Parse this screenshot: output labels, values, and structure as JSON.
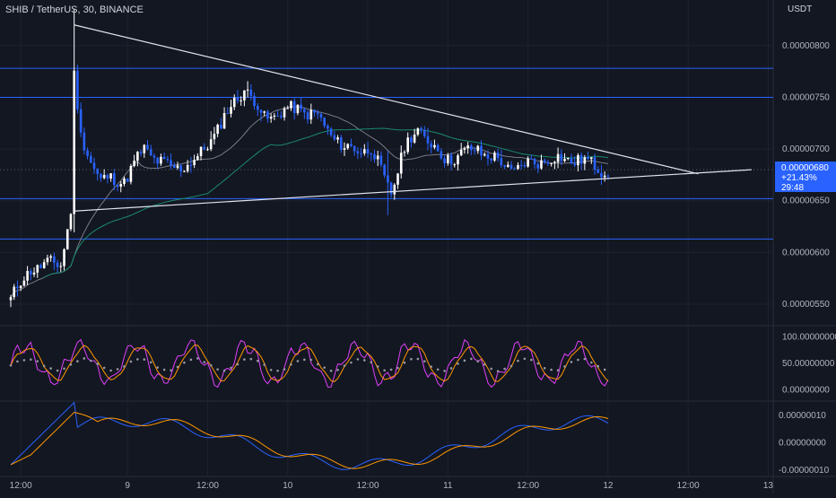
{
  "header": {
    "title": "SHIB / TetherUS, 30, BINANCE",
    "currency": "USDT"
  },
  "colors": {
    "background": "#131722",
    "grid": "#1e2230",
    "axis_text": "#b2b5be",
    "up_candle": "#ffffff",
    "down_candle": "#2962ff",
    "hline": "#2962ff",
    "trendline": "#e0e3eb",
    "sma_gray": "#787b86",
    "sma_teal": "#1b8a6b",
    "rsi_magenta": "#e040fb",
    "rsi_orange": "#ff9800",
    "dots": "#9598a1",
    "macd_blue": "#2962ff",
    "macd_orange": "#ff9800",
    "price_label": "#2962ff"
  },
  "price_label": {
    "price": "0.00000680",
    "change": "+21.43%",
    "countdown": "29:48"
  },
  "chart_data": [
    {
      "type": "candlestick",
      "pane": "price",
      "ylim": [
        5.3e-06,
        8.25e-06
      ],
      "y_ticks": [
        "0.00000800",
        "0.00000750",
        "0.00000700",
        "0.00000650",
        "0.00000600",
        "0.00000550"
      ],
      "y_tick_values": [
        8e-06,
        7.5e-06,
        7e-06,
        6.5e-06,
        6e-06,
        5.5e-06
      ],
      "x_ticks": [
        "12:00",
        "9",
        "12:00",
        "10",
        "12:00",
        "11",
        "12:00",
        "12",
        "12:00",
        "13"
      ],
      "x_tick_index": [
        3,
        35,
        59,
        83,
        107,
        131,
        155,
        179,
        203,
        227
      ],
      "bars_shown": 180,
      "horizontal_levels": [
        7.78e-06,
        7.5e-06,
        6.52e-06,
        6.13e-06
      ],
      "trendlines": [
        {
          "from": [
            19,
            8.2e-06
          ],
          "to": [
            206,
            6.76e-06
          ]
        },
        {
          "from": [
            19,
            6.4e-06
          ],
          "to": [
            222,
            6.8e-06
          ]
        }
      ],
      "anchors": [
        [
          0,
          5.55e-06
        ],
        [
          6,
          5.85e-06
        ],
        [
          15,
          5.9e-06
        ],
        [
          18,
          6.4e-06
        ],
        [
          19,
          7.7e-06
        ],
        [
          21,
          7.1e-06
        ],
        [
          27,
          6.7e-06
        ],
        [
          34,
          6.7e-06
        ],
        [
          40,
          7e-06
        ],
        [
          48,
          6.8e-06
        ],
        [
          56,
          6.9e-06
        ],
        [
          64,
          7.3e-06
        ],
        [
          70,
          7.6e-06
        ],
        [
          76,
          7.3e-06
        ],
        [
          86,
          7.4e-06
        ],
        [
          92,
          7.3e-06
        ],
        [
          100,
          7e-06
        ],
        [
          108,
          7e-06
        ],
        [
          112,
          6.7e-06
        ],
        [
          114,
          6.6e-06
        ],
        [
          118,
          7e-06
        ],
        [
          122,
          7.2e-06
        ],
        [
          130,
          6.9e-06
        ],
        [
          140,
          7e-06
        ],
        [
          150,
          6.8e-06
        ],
        [
          160,
          6.9e-06
        ],
        [
          170,
          6.9e-06
        ],
        [
          178,
          6.8e-06
        ]
      ]
    },
    {
      "type": "line",
      "pane": "stochastic_rsi",
      "ylim": [
        -20,
        120
      ],
      "y_ticks": [
        "100.00000000",
        "50.00000000",
        "0.00000000"
      ],
      "y_tick_values": [
        100,
        50,
        0
      ]
    },
    {
      "type": "line",
      "pane": "macd",
      "ylim": [
        -1.2e-07,
        1.5e-07
      ],
      "y_ticks": [
        "0.00000010",
        "0.00000000",
        "-0.00000010"
      ],
      "y_tick_values": [
        1e-07,
        0,
        -1e-07
      ]
    }
  ]
}
